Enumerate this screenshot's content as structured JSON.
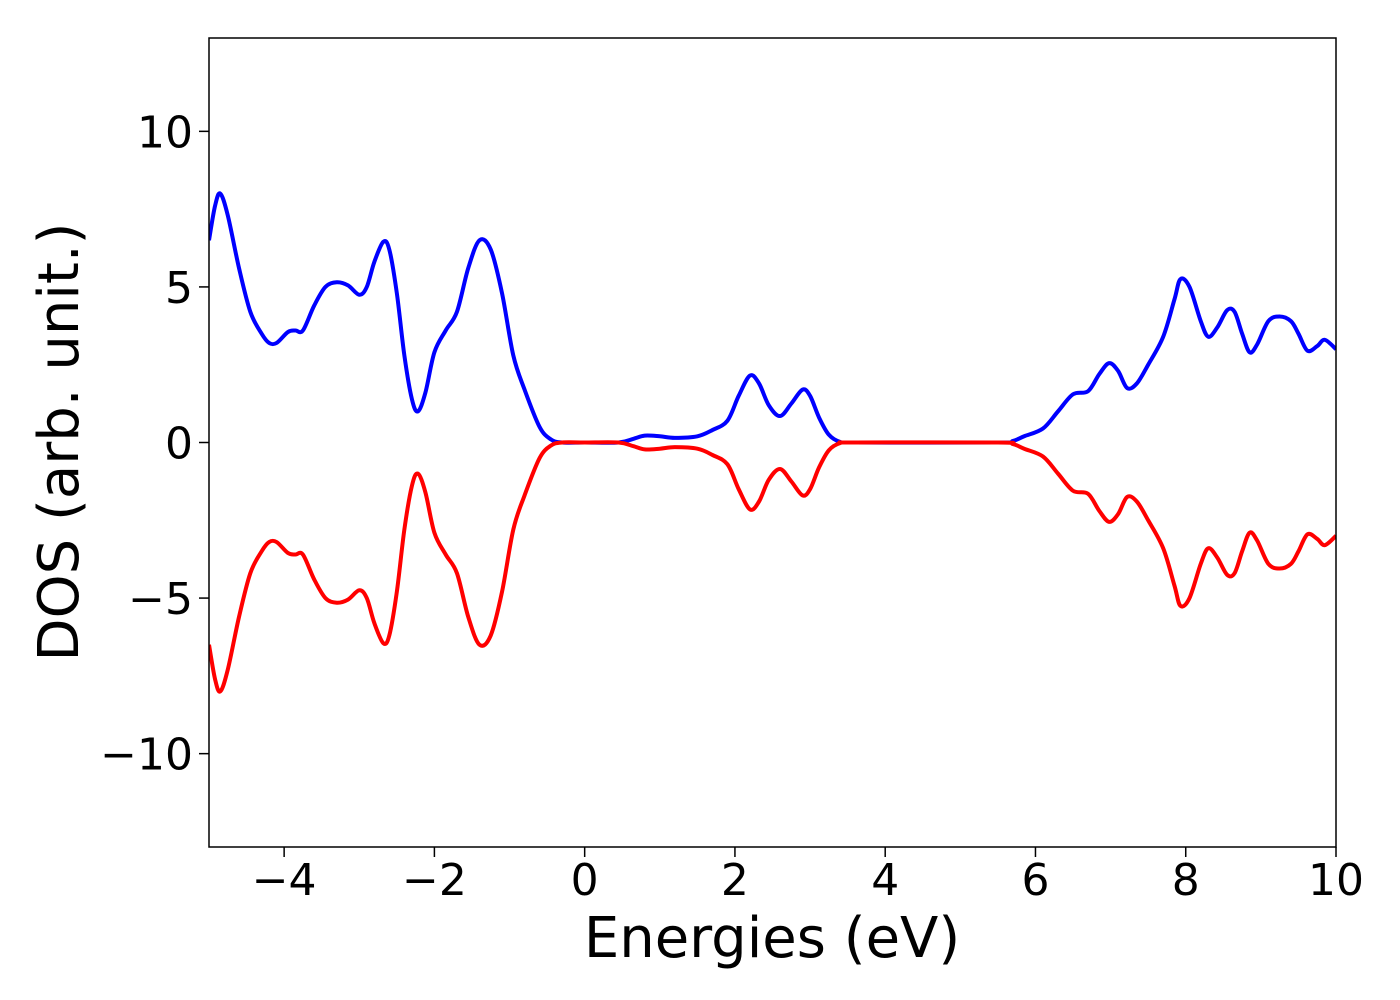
{
  "chart_data": {
    "type": "line",
    "title": "",
    "xlabel": "Energies (eV)",
    "ylabel": "DOS (arb. unit.)",
    "xlim": [
      -5,
      10
    ],
    "ylim": [
      -13,
      13
    ],
    "xticks": [
      {
        "value": -4,
        "label": "−4"
      },
      {
        "value": -2,
        "label": "−2"
      },
      {
        "value": 0,
        "label": "0"
      },
      {
        "value": 2,
        "label": "2"
      },
      {
        "value": 4,
        "label": "4"
      },
      {
        "value": 6,
        "label": "6"
      },
      {
        "value": 8,
        "label": "8"
      },
      {
        "value": 10,
        "label": "10"
      }
    ],
    "yticks": [
      {
        "value": 10,
        "label": "10"
      },
      {
        "value": 5,
        "label": "5"
      },
      {
        "value": 0,
        "label": "0"
      },
      {
        "value": -5,
        "label": "−5"
      },
      {
        "value": -10,
        "label": "−10"
      }
    ],
    "grid": false,
    "legend": "none",
    "series": [
      {
        "color": "#0000ff",
        "points": [
          [
            -5.0,
            6.5
          ],
          [
            -4.92,
            7.6
          ],
          [
            -4.85,
            8.0
          ],
          [
            -4.75,
            7.3
          ],
          [
            -4.6,
            5.6
          ],
          [
            -4.45,
            4.2
          ],
          [
            -4.3,
            3.5
          ],
          [
            -4.2,
            3.2
          ],
          [
            -4.1,
            3.2
          ],
          [
            -3.95,
            3.55
          ],
          [
            -3.85,
            3.6
          ],
          [
            -3.75,
            3.6
          ],
          [
            -3.6,
            4.4
          ],
          [
            -3.45,
            5.0
          ],
          [
            -3.3,
            5.15
          ],
          [
            -3.15,
            5.05
          ],
          [
            -3.0,
            4.75
          ],
          [
            -2.9,
            5.0
          ],
          [
            -2.8,
            5.8
          ],
          [
            -2.68,
            6.45
          ],
          [
            -2.6,
            6.2
          ],
          [
            -2.5,
            4.8
          ],
          [
            -2.4,
            2.8
          ],
          [
            -2.3,
            1.4
          ],
          [
            -2.22,
            1.0
          ],
          [
            -2.12,
            1.6
          ],
          [
            -2.0,
            2.9
          ],
          [
            -1.85,
            3.6
          ],
          [
            -1.7,
            4.2
          ],
          [
            -1.55,
            5.6
          ],
          [
            -1.4,
            6.5
          ],
          [
            -1.25,
            6.2
          ],
          [
            -1.1,
            4.8
          ],
          [
            -0.95,
            2.8
          ],
          [
            -0.8,
            1.7
          ],
          [
            -0.6,
            0.5
          ],
          [
            -0.45,
            0.1
          ],
          [
            -0.3,
            0.0
          ],
          [
            0.0,
            0.0
          ],
          [
            0.45,
            0.0
          ],
          [
            0.65,
            0.12
          ],
          [
            0.8,
            0.22
          ],
          [
            1.0,
            0.2
          ],
          [
            1.2,
            0.15
          ],
          [
            1.5,
            0.2
          ],
          [
            1.7,
            0.4
          ],
          [
            1.9,
            0.7
          ],
          [
            2.05,
            1.5
          ],
          [
            2.2,
            2.15
          ],
          [
            2.32,
            1.9
          ],
          [
            2.45,
            1.2
          ],
          [
            2.6,
            0.85
          ],
          [
            2.75,
            1.25
          ],
          [
            2.9,
            1.7
          ],
          [
            3.0,
            1.5
          ],
          [
            3.12,
            0.8
          ],
          [
            3.25,
            0.25
          ],
          [
            3.4,
            0.02
          ],
          [
            3.6,
            0.0
          ],
          [
            5.5,
            0.0
          ],
          [
            5.7,
            0.05
          ],
          [
            5.85,
            0.2
          ],
          [
            6.1,
            0.45
          ],
          [
            6.3,
            1.0
          ],
          [
            6.5,
            1.55
          ],
          [
            6.7,
            1.65
          ],
          [
            6.85,
            2.2
          ],
          [
            6.98,
            2.55
          ],
          [
            7.1,
            2.3
          ],
          [
            7.22,
            1.75
          ],
          [
            7.35,
            1.9
          ],
          [
            7.5,
            2.5
          ],
          [
            7.7,
            3.4
          ],
          [
            7.85,
            4.6
          ],
          [
            7.93,
            5.25
          ],
          [
            8.05,
            5.0
          ],
          [
            8.2,
            3.9
          ],
          [
            8.3,
            3.4
          ],
          [
            8.42,
            3.7
          ],
          [
            8.55,
            4.25
          ],
          [
            8.65,
            4.2
          ],
          [
            8.75,
            3.5
          ],
          [
            8.85,
            2.9
          ],
          [
            8.95,
            3.15
          ],
          [
            9.1,
            3.9
          ],
          [
            9.25,
            4.05
          ],
          [
            9.4,
            3.9
          ],
          [
            9.5,
            3.5
          ],
          [
            9.62,
            2.95
          ],
          [
            9.75,
            3.1
          ],
          [
            9.85,
            3.3
          ],
          [
            10.0,
            3.0
          ]
        ]
      },
      {
        "color": "#ff0000",
        "points": [
          [
            -5.0,
            -6.5
          ],
          [
            -4.92,
            -7.6
          ],
          [
            -4.85,
            -8.0
          ],
          [
            -4.75,
            -7.3
          ],
          [
            -4.6,
            -5.6
          ],
          [
            -4.45,
            -4.2
          ],
          [
            -4.3,
            -3.5
          ],
          [
            -4.2,
            -3.2
          ],
          [
            -4.1,
            -3.2
          ],
          [
            -3.95,
            -3.55
          ],
          [
            -3.85,
            -3.6
          ],
          [
            -3.75,
            -3.6
          ],
          [
            -3.6,
            -4.4
          ],
          [
            -3.45,
            -5.0
          ],
          [
            -3.3,
            -5.15
          ],
          [
            -3.15,
            -5.05
          ],
          [
            -3.0,
            -4.75
          ],
          [
            -2.9,
            -5.0
          ],
          [
            -2.8,
            -5.8
          ],
          [
            -2.68,
            -6.45
          ],
          [
            -2.6,
            -6.2
          ],
          [
            -2.5,
            -4.8
          ],
          [
            -2.4,
            -2.8
          ],
          [
            -2.3,
            -1.4
          ],
          [
            -2.22,
            -1.0
          ],
          [
            -2.12,
            -1.6
          ],
          [
            -2.0,
            -2.9
          ],
          [
            -1.85,
            -3.6
          ],
          [
            -1.7,
            -4.2
          ],
          [
            -1.55,
            -5.6
          ],
          [
            -1.4,
            -6.5
          ],
          [
            -1.25,
            -6.2
          ],
          [
            -1.1,
            -4.8
          ],
          [
            -0.95,
            -2.8
          ],
          [
            -0.8,
            -1.7
          ],
          [
            -0.6,
            -0.5
          ],
          [
            -0.45,
            -0.1
          ],
          [
            -0.3,
            0.0
          ],
          [
            0.0,
            0.0
          ],
          [
            0.45,
            0.0
          ],
          [
            0.65,
            -0.12
          ],
          [
            0.8,
            -0.22
          ],
          [
            1.0,
            -0.2
          ],
          [
            1.2,
            -0.15
          ],
          [
            1.5,
            -0.2
          ],
          [
            1.7,
            -0.4
          ],
          [
            1.9,
            -0.7
          ],
          [
            2.05,
            -1.5
          ],
          [
            2.2,
            -2.15
          ],
          [
            2.32,
            -1.9
          ],
          [
            2.45,
            -1.2
          ],
          [
            2.6,
            -0.85
          ],
          [
            2.75,
            -1.25
          ],
          [
            2.9,
            -1.7
          ],
          [
            3.0,
            -1.5
          ],
          [
            3.12,
            -0.8
          ],
          [
            3.25,
            -0.25
          ],
          [
            3.4,
            -0.02
          ],
          [
            3.6,
            0.0
          ],
          [
            5.5,
            0.0
          ],
          [
            5.7,
            -0.05
          ],
          [
            5.85,
            -0.2
          ],
          [
            6.1,
            -0.45
          ],
          [
            6.3,
            -1.0
          ],
          [
            6.5,
            -1.55
          ],
          [
            6.7,
            -1.65
          ],
          [
            6.85,
            -2.2
          ],
          [
            6.98,
            -2.55
          ],
          [
            7.1,
            -2.3
          ],
          [
            7.22,
            -1.75
          ],
          [
            7.35,
            -1.9
          ],
          [
            7.5,
            -2.5
          ],
          [
            7.7,
            -3.4
          ],
          [
            7.85,
            -4.6
          ],
          [
            7.93,
            -5.25
          ],
          [
            8.05,
            -5.0
          ],
          [
            8.2,
            -3.9
          ],
          [
            8.3,
            -3.4
          ],
          [
            8.42,
            -3.7
          ],
          [
            8.55,
            -4.25
          ],
          [
            8.65,
            -4.2
          ],
          [
            8.75,
            -3.5
          ],
          [
            8.85,
            -2.9
          ],
          [
            8.95,
            -3.15
          ],
          [
            9.1,
            -3.9
          ],
          [
            9.25,
            -4.05
          ],
          [
            9.4,
            -3.9
          ],
          [
            9.5,
            -3.5
          ],
          [
            9.62,
            -2.95
          ],
          [
            9.75,
            -3.1
          ],
          [
            9.85,
            -3.3
          ],
          [
            10.0,
            -3.0
          ]
        ]
      }
    ]
  }
}
